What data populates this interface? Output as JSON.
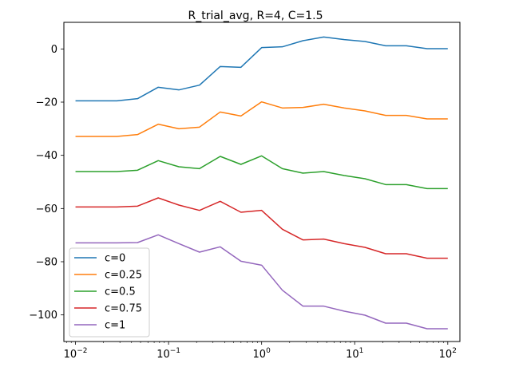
{
  "chart_data": {
    "type": "line",
    "title": "R_trial_avg, R=4, C=1.5",
    "xlabel": "",
    "ylabel": "",
    "xscale": "log",
    "xlim": [
      0.0075,
      135
    ],
    "ylim": [
      -110,
      10
    ],
    "grid": false,
    "legend_position": "lower-left",
    "x": [
      0.01,
      0.0167,
      0.0278,
      0.0464,
      0.0774,
      0.129,
      0.215,
      0.359,
      0.599,
      1.0,
      1.67,
      2.78,
      4.64,
      7.74,
      12.9,
      21.5,
      35.9,
      59.9,
      100
    ],
    "x_ticks": [
      {
        "value": 0.01,
        "base": "10",
        "exp": "−2"
      },
      {
        "value": 0.1,
        "base": "10",
        "exp": "−1"
      },
      {
        "value": 1,
        "base": "10",
        "exp": "0"
      },
      {
        "value": 10,
        "base": "10",
        "exp": "1"
      },
      {
        "value": 100,
        "base": "10",
        "exp": "2"
      }
    ],
    "y_ticks": [
      {
        "value": 0,
        "label": "0"
      },
      {
        "value": -20,
        "label": "−20"
      },
      {
        "value": -40,
        "label": "−40"
      },
      {
        "value": -60,
        "label": "−60"
      },
      {
        "value": -80,
        "label": "−80"
      },
      {
        "value": -100,
        "label": "−100"
      }
    ],
    "series": [
      {
        "name": "c=0",
        "color": "#1f77b4",
        "values": [
          -19.5,
          -19.5,
          -19.5,
          -18.7,
          -14.4,
          -15.4,
          -13.6,
          -6.6,
          -6.9,
          0.5,
          0.8,
          3.1,
          4.5,
          3.5,
          2.8,
          1.2,
          1.2,
          0.1,
          0.1
        ]
      },
      {
        "name": "c=0.25",
        "color": "#ff7f0e",
        "values": [
          -32.9,
          -32.9,
          -32.9,
          -32.2,
          -28.3,
          -30.0,
          -29.4,
          -23.7,
          -25.2,
          -19.9,
          -22.2,
          -22.0,
          -20.8,
          -22.2,
          -23.3,
          -25.0,
          -25.0,
          -26.3,
          -26.3
        ]
      },
      {
        "name": "c=0.5",
        "color": "#2ca02c",
        "values": [
          -46.1,
          -46.1,
          -46.1,
          -45.6,
          -42.0,
          -44.3,
          -45.0,
          -40.4,
          -43.4,
          -40.2,
          -45.0,
          -46.7,
          -46.1,
          -47.6,
          -48.8,
          -51.0,
          -51.0,
          -52.5,
          -52.5
        ]
      },
      {
        "name": "c=0.75",
        "color": "#d62728",
        "values": [
          -59.4,
          -59.4,
          -59.4,
          -59.1,
          -56.0,
          -58.7,
          -60.7,
          -57.3,
          -61.4,
          -60.7,
          -67.8,
          -71.8,
          -71.5,
          -73.2,
          -74.6,
          -77.0,
          -77.0,
          -78.7,
          -78.7
        ]
      },
      {
        "name": "c=1",
        "color": "#9467bd",
        "values": [
          -72.9,
          -72.9,
          -72.9,
          -72.8,
          -69.9,
          -73.2,
          -76.4,
          -74.4,
          -79.8,
          -81.3,
          -90.7,
          -96.7,
          -96.7,
          -98.6,
          -100.1,
          -103.1,
          -103.1,
          -105.2,
          -105.2
        ]
      }
    ]
  }
}
